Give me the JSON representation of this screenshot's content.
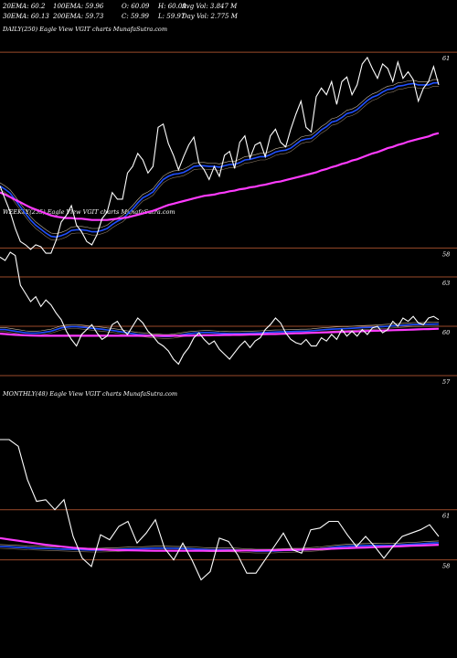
{
  "stats_row1": [
    {
      "label": "20EMA",
      "value": "60.2"
    },
    {
      "label": "100EMA",
      "value": "59.96"
    },
    {
      "label": "O",
      "value": "60.09"
    },
    {
      "label": "H",
      "value": "60.09"
    },
    {
      "label": "Avg Vol",
      "value": "3.847 M"
    }
  ],
  "stats_row2": [
    {
      "label": "30EMA",
      "value": "60.13"
    },
    {
      "label": "200EMA",
      "value": "59.73"
    },
    {
      "label": "C",
      "value": "59.99"
    },
    {
      "label": "L",
      "value": "59.97"
    },
    {
      "label": "Day Vol",
      "value": "2.775 M"
    }
  ],
  "colors": {
    "price": "#ffffff",
    "ema_short": "#1f4fff",
    "ema_long": "#ff3bff",
    "ma_band": "#c8b9a0",
    "hline": "#9a4a2a"
  },
  "chart_data": [
    {
      "type": "line",
      "panel": "DAILY(250) Eagle View VGIT charts MunafaSutra.com",
      "title": "DAILY(250) Eagle View VGIT charts MunafaSutra.com",
      "yticks": [
        "61",
        "58"
      ],
      "ylim": [
        57.6,
        61.8
      ],
      "hlines": [
        61,
        58
      ],
      "series": [
        {
          "role": "price",
          "values": [
            58.95,
            58.75,
            58.55,
            58.3,
            58.1,
            58.05,
            57.98,
            58.05,
            58.02,
            57.92,
            57.92,
            58.12,
            58.4,
            58.5,
            58.65,
            58.35,
            58.25,
            58.1,
            58.05,
            58.2,
            58.45,
            58.55,
            58.85,
            58.75,
            58.75,
            59.15,
            59.25,
            59.45,
            59.35,
            59.15,
            59.25,
            59.85,
            59.9,
            59.6,
            59.42,
            59.2,
            59.4,
            59.58,
            59.7,
            59.3,
            59.2,
            59.05,
            59.25,
            59.1,
            59.42,
            59.48,
            59.22,
            59.62,
            59.72,
            59.38,
            59.58,
            59.62,
            59.4,
            59.72,
            59.82,
            59.62,
            59.55,
            59.82,
            60.05,
            60.25,
            59.85,
            59.78,
            60.32,
            60.45,
            60.35,
            60.55,
            60.2,
            60.55,
            60.62,
            60.35,
            60.5,
            60.82,
            60.92,
            60.75,
            60.6,
            60.82,
            60.75,
            60.55,
            60.85,
            60.6,
            60.7,
            60.58,
            60.25,
            60.45,
            60.55,
            60.78,
            60.5
          ]
        },
        {
          "role": "ema_short",
          "values": [
            58.95,
            58.9,
            58.84,
            58.74,
            58.63,
            58.53,
            58.43,
            58.35,
            58.29,
            58.23,
            58.18,
            58.17,
            58.19,
            58.22,
            58.27,
            58.28,
            58.28,
            58.27,
            58.25,
            58.25,
            58.27,
            58.3,
            58.36,
            58.41,
            58.45,
            58.52,
            58.6,
            58.69,
            58.77,
            58.81,
            58.86,
            58.96,
            59.05,
            59.1,
            59.13,
            59.14,
            59.16,
            59.2,
            59.25,
            59.26,
            59.26,
            59.25,
            59.25,
            59.24,
            59.26,
            59.28,
            59.28,
            59.31,
            59.35,
            59.36,
            59.38,
            59.4,
            59.4,
            59.43,
            59.47,
            59.49,
            59.5,
            59.53,
            59.59,
            59.65,
            59.67,
            59.68,
            59.74,
            59.81,
            59.86,
            59.93,
            59.95,
            60.0,
            60.06,
            60.08,
            60.12,
            60.19,
            60.26,
            60.31,
            60.34,
            60.39,
            60.43,
            60.44,
            60.48,
            60.49,
            60.51,
            60.52,
            60.5,
            60.5,
            60.5,
            60.53,
            60.53
          ]
        },
        {
          "role": "ema_long",
          "values": [
            58.85,
            58.82,
            58.78,
            58.74,
            58.7,
            58.66,
            58.62,
            58.59,
            58.56,
            58.53,
            58.5,
            58.48,
            58.47,
            58.46,
            58.46,
            58.45,
            58.45,
            58.44,
            58.43,
            58.43,
            58.43,
            58.43,
            58.44,
            58.45,
            58.46,
            58.47,
            58.49,
            58.51,
            58.53,
            58.55,
            58.57,
            58.6,
            58.63,
            58.66,
            58.68,
            58.7,
            58.72,
            58.74,
            58.76,
            58.78,
            58.8,
            58.81,
            58.82,
            58.84,
            58.85,
            58.87,
            58.88,
            58.9,
            58.91,
            58.93,
            58.94,
            58.96,
            58.97,
            58.99,
            59.01,
            59.02,
            59.04,
            59.06,
            59.08,
            59.1,
            59.12,
            59.14,
            59.16,
            59.19,
            59.21,
            59.24,
            59.26,
            59.29,
            59.31,
            59.34,
            59.36,
            59.39,
            59.42,
            59.45,
            59.47,
            59.5,
            59.53,
            59.55,
            59.58,
            59.6,
            59.63,
            59.65,
            59.67,
            59.69,
            59.71,
            59.74,
            59.76
          ]
        }
      ]
    },
    {
      "type": "line",
      "panel": "WEEKLY(235) Eagle View VGIT charts MunafaSutra.com",
      "title": "WEEKLY(235) Eagle View VGIT charts MunafaSutra.com",
      "yticks": [
        "63",
        "60",
        "57"
      ],
      "ylim": [
        56.5,
        66.5
      ],
      "hlines": [
        63,
        60,
        57
      ],
      "series": [
        {
          "role": "price",
          "values": [
            64.2,
            64.0,
            64.5,
            64.3,
            62.5,
            62.0,
            61.5,
            61.8,
            61.2,
            61.6,
            61.3,
            60.8,
            60.4,
            59.7,
            59.2,
            58.8,
            59.5,
            59.8,
            60.1,
            59.6,
            59.2,
            59.4,
            60.1,
            60.3,
            59.8,
            59.5,
            60.0,
            60.5,
            60.2,
            59.7,
            59.4,
            59.0,
            58.8,
            58.5,
            58.0,
            57.7,
            58.3,
            58.7,
            59.3,
            59.6,
            59.2,
            58.9,
            59.1,
            58.6,
            58.3,
            58.0,
            58.4,
            58.8,
            59.1,
            58.7,
            59.1,
            59.3,
            59.8,
            60.1,
            60.5,
            60.2,
            59.6,
            59.2,
            59.0,
            58.9,
            59.2,
            58.8,
            58.8,
            59.3,
            59.1,
            59.5,
            59.2,
            59.8,
            59.4,
            59.7,
            59.4,
            59.8,
            59.5,
            59.9,
            60.0,
            59.6,
            59.8,
            60.3,
            60.0,
            60.5,
            60.3,
            60.6,
            60.2,
            60.1,
            60.5,
            60.6,
            60.4
          ]
        },
        {
          "role": "ema_short",
          "values": [
            59.8,
            59.8,
            59.75,
            59.7,
            59.65,
            59.6,
            59.58,
            59.58,
            59.6,
            59.65,
            59.7,
            59.8,
            59.9,
            59.95,
            59.98,
            59.98,
            59.95,
            59.92,
            59.88,
            59.85,
            59.82,
            59.78,
            59.75,
            59.7,
            59.65,
            59.6,
            59.55,
            59.5,
            59.48,
            59.45,
            59.42,
            59.4,
            59.38,
            59.38,
            59.4,
            59.45,
            59.5,
            59.55,
            59.58,
            59.6,
            59.62,
            59.62,
            59.6,
            59.58,
            59.57,
            59.56,
            59.56,
            59.56,
            59.57,
            59.58,
            59.59,
            59.6,
            59.62,
            59.64,
            59.65,
            59.66,
            59.67,
            59.68,
            59.69,
            59.7,
            59.7,
            59.72,
            59.75,
            59.78,
            59.8,
            59.82,
            59.84,
            59.85,
            59.86,
            59.88,
            59.9,
            59.92,
            59.93,
            59.94,
            59.96,
            59.98,
            60.0,
            60.02,
            60.04,
            60.06,
            60.08,
            60.1,
            60.1,
            60.11,
            60.12,
            60.13,
            60.14
          ]
        },
        {
          "role": "ema_long",
          "values": [
            59.55,
            59.53,
            59.5,
            59.48,
            59.46,
            59.45,
            59.44,
            59.43,
            59.42,
            59.42,
            59.42,
            59.42,
            59.42,
            59.42,
            59.42,
            59.42,
            59.42,
            59.42,
            59.42,
            59.42,
            59.42,
            59.42,
            59.42,
            59.42,
            59.42,
            59.42,
            59.42,
            59.42,
            59.42,
            59.42,
            59.42,
            59.42,
            59.42,
            59.42,
            59.42,
            59.42,
            59.43,
            59.43,
            59.44,
            59.44,
            59.45,
            59.45,
            59.46,
            59.46,
            59.47,
            59.47,
            59.48,
            59.48,
            59.49,
            59.5,
            59.5,
            59.51,
            59.52,
            59.53,
            59.53,
            59.54,
            59.55,
            59.56,
            59.57,
            59.58,
            59.59,
            59.6,
            59.61,
            59.62,
            59.63,
            59.64,
            59.65,
            59.66,
            59.67,
            59.68,
            59.69,
            59.7,
            59.71,
            59.72,
            59.73,
            59.74,
            59.75,
            59.76,
            59.77,
            59.78,
            59.79,
            59.8,
            59.81,
            59.82,
            59.83,
            59.84,
            59.85
          ]
        }
      ]
    },
    {
      "type": "line",
      "panel": "MONTHLY(48) Eagle View VGIT charts MunafaSutra.com",
      "title": "MONTHLY(48) Eagle View VGIT charts MunafaSutra.com",
      "yticks": [
        "61",
        "58"
      ],
      "ylim": [
        56.5,
        65.8
      ],
      "hlines": [
        61,
        58
      ],
      "series": [
        {
          "role": "price",
          "values": [
            65.2,
            65.2,
            64.8,
            62.8,
            61.5,
            61.6,
            61.0,
            61.6,
            59.4,
            58.1,
            57.6,
            59.5,
            59.2,
            60.0,
            60.3,
            59.0,
            59.6,
            60.4,
            58.7,
            58.0,
            59.0,
            58.0,
            56.8,
            57.3,
            59.3,
            59.1,
            58.3,
            57.2,
            57.2,
            58.0,
            58.8,
            59.6,
            58.6,
            58.4,
            59.8,
            59.9,
            60.3,
            60.3,
            59.5,
            58.8,
            59.4,
            58.8,
            58.1,
            58.8,
            59.4,
            59.6,
            59.8,
            60.1,
            59.4
          ]
        },
        {
          "role": "ema_short",
          "values": [
            58.8,
            58.78,
            58.75,
            58.72,
            58.7,
            58.68,
            58.66,
            58.64,
            58.62,
            58.6,
            58.58,
            58.58,
            58.6,
            58.62,
            58.65,
            58.66,
            58.68,
            58.7,
            58.7,
            58.69,
            58.68,
            58.66,
            58.63,
            58.6,
            58.6,
            58.6,
            58.58,
            58.55,
            58.52,
            58.52,
            58.53,
            58.56,
            58.57,
            58.58,
            58.62,
            58.66,
            58.72,
            58.78,
            58.82,
            58.84,
            58.86,
            58.87,
            58.86,
            58.87,
            58.9,
            58.93,
            58.96,
            59.0,
            59.02
          ]
        },
        {
          "role": "ema_long",
          "values": [
            59.3,
            59.22,
            59.14,
            59.06,
            58.98,
            58.9,
            58.84,
            58.78,
            58.72,
            58.68,
            58.64,
            58.62,
            58.6,
            58.58,
            58.57,
            58.56,
            58.55,
            58.54,
            58.54,
            58.54,
            58.54,
            58.54,
            58.54,
            58.54,
            58.54,
            58.55,
            58.55,
            58.56,
            58.56,
            58.57,
            58.58,
            58.59,
            58.6,
            58.61,
            58.62,
            58.64,
            58.66,
            58.68,
            58.7,
            58.72,
            58.74,
            58.76,
            58.78,
            58.8,
            58.82,
            58.84,
            58.86,
            58.88,
            58.9
          ]
        }
      ]
    }
  ]
}
